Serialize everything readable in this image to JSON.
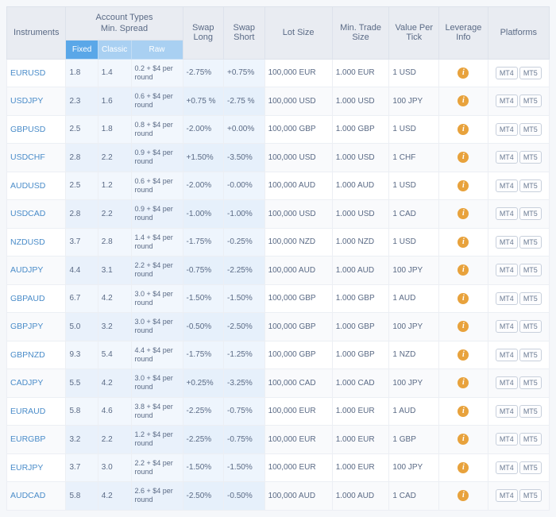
{
  "headers": {
    "instruments": "Instruments",
    "account_types": "Account Types\nMin. Spread",
    "swap_long": "Swap Long",
    "swap_short": "Swap Short",
    "lot_size": "Lot Size",
    "min_trade": "Min. Trade Size",
    "value_per_tick": "Value Per Tick",
    "leverage_info": "Leverage Info",
    "platforms": "Platforms",
    "sub_fixed": "Fixed",
    "sub_classic": "Classic",
    "sub_raw": "Raw"
  },
  "platform_labels": {
    "mt4": "MT4",
    "mt5": "MT5"
  },
  "info_icon_glyph": "i",
  "colors": {
    "header_bg": "#e9ecf2",
    "acct_group_bg": "#6fb0ea",
    "sub_bg": "#a9d0f2",
    "sub_selected_bg": "#5aa7e8",
    "acct_cell_bg": "#f2f7fd",
    "swap_cell_bg": "#eef5fd",
    "instr_color": "#4a8cc9",
    "info_icon_bg": "#e8a23c",
    "btn_border": "#c8d0dc"
  },
  "rows": [
    {
      "instr": "EURUSD",
      "fixed": "1.8",
      "classic": "1.4",
      "raw": "0.2 + $4 per round",
      "swap_long": "-2.75%",
      "swap_short": "+0.75%",
      "lot": "100,000 EUR",
      "min": "1.000 EUR",
      "tick": "1 USD"
    },
    {
      "instr": "USDJPY",
      "fixed": "2.3",
      "classic": "1.6",
      "raw": "0.6 + $4 per round",
      "swap_long": "+0.75 %",
      "swap_short": "-2.75 %",
      "lot": "100,000 USD",
      "min": "1.000 USD",
      "tick": "100 JPY"
    },
    {
      "instr": "GBPUSD",
      "fixed": "2.5",
      "classic": "1.8",
      "raw": "0.8 + $4 per round",
      "swap_long": "-2.00%",
      "swap_short": "+0.00%",
      "lot": "100,000 GBP",
      "min": "1.000 GBP",
      "tick": "1 USD"
    },
    {
      "instr": "USDCHF",
      "fixed": "2.8",
      "classic": "2.2",
      "raw": "0.9 + $4 per round",
      "swap_long": "+1.50%",
      "swap_short": "-3.50%",
      "lot": "100,000 USD",
      "min": "1.000 USD",
      "tick": "1 CHF"
    },
    {
      "instr": "AUDUSD",
      "fixed": "2.5",
      "classic": "1.2",
      "raw": "0.6 + $4 per round",
      "swap_long": "-2.00%",
      "swap_short": "-0.00%",
      "lot": "100,000 AUD",
      "min": "1.000 AUD",
      "tick": "1 USD"
    },
    {
      "instr": "USDCAD",
      "fixed": "2.8",
      "classic": "2.2",
      "raw": "0.9 + $4 per round",
      "swap_long": "-1.00%",
      "swap_short": "-1.00%",
      "lot": "100,000 USD",
      "min": "1.000 USD",
      "tick": "1 CAD"
    },
    {
      "instr": "NZDUSD",
      "fixed": "3.7",
      "classic": "2.8",
      "raw": "1.4 + $4 per round",
      "swap_long": "-1.75%",
      "swap_short": "-0.25%",
      "lot": "100,000 NZD",
      "min": "1.000 NZD",
      "tick": "1 USD"
    },
    {
      "instr": "AUDJPY",
      "fixed": "4.4",
      "classic": "3.1",
      "raw": "2.2 + $4 per round",
      "swap_long": "-0.75%",
      "swap_short": "-2.25%",
      "lot": "100,000 AUD",
      "min": "1.000 AUD",
      "tick": "100 JPY"
    },
    {
      "instr": "GBPAUD",
      "fixed": "6.7",
      "classic": "4.2",
      "raw": "3.0 + $4 per round",
      "swap_long": "-1.50%",
      "swap_short": "-1.50%",
      "lot": "100,000 GBP",
      "min": "1.000 GBP",
      "tick": "1 AUD"
    },
    {
      "instr": "GBPJPY",
      "fixed": "5.0",
      "classic": "3.2",
      "raw": "3.0 + $4 per round",
      "swap_long": "-0.50%",
      "swap_short": "-2.50%",
      "lot": "100,000 GBP",
      "min": "1.000 GBP",
      "tick": "100 JPY"
    },
    {
      "instr": "GBPNZD",
      "fixed": "9.3",
      "classic": "5.4",
      "raw": "4.4 + $4 per round",
      "swap_long": "-1.75%",
      "swap_short": "-1.25%",
      "lot": "100,000 GBP",
      "min": "1.000 GBP",
      "tick": "1 NZD"
    },
    {
      "instr": "CADJPY",
      "fixed": "5.5",
      "classic": "4.2",
      "raw": "3.0 + $4 per round",
      "swap_long": "+0.25%",
      "swap_short": "-3.25%",
      "lot": "100,000 CAD",
      "min": "1.000 CAD",
      "tick": "100 JPY"
    },
    {
      "instr": "EURAUD",
      "fixed": "5.8",
      "classic": "4.6",
      "raw": "3.8 + $4 per round",
      "swap_long": "-2.25%",
      "swap_short": "-0.75%",
      "lot": "100,000 EUR",
      "min": "1.000 EUR",
      "tick": "1 AUD"
    },
    {
      "instr": "EURGBP",
      "fixed": "3.2",
      "classic": "2.2",
      "raw": "1.2 + $4 per round",
      "swap_long": "-2.25%",
      "swap_short": "-0.75%",
      "lot": "100,000 EUR",
      "min": "1.000 EUR",
      "tick": "1 GBP"
    },
    {
      "instr": "EURJPY",
      "fixed": "3.7",
      "classic": "3.0",
      "raw": "2.2 + $4 per round",
      "swap_long": "-1.50%",
      "swap_short": "-1.50%",
      "lot": "100,000 EUR",
      "min": "1.000 EUR",
      "tick": "100 JPY"
    },
    {
      "instr": "AUDCAD",
      "fixed": "5.8",
      "classic": "4.2",
      "raw": "2.6 + $4 per round",
      "swap_long": "-2.50%",
      "swap_short": "-0.50%",
      "lot": "100,000 AUD",
      "min": "1.000 AUD",
      "tick": "1 CAD"
    }
  ]
}
